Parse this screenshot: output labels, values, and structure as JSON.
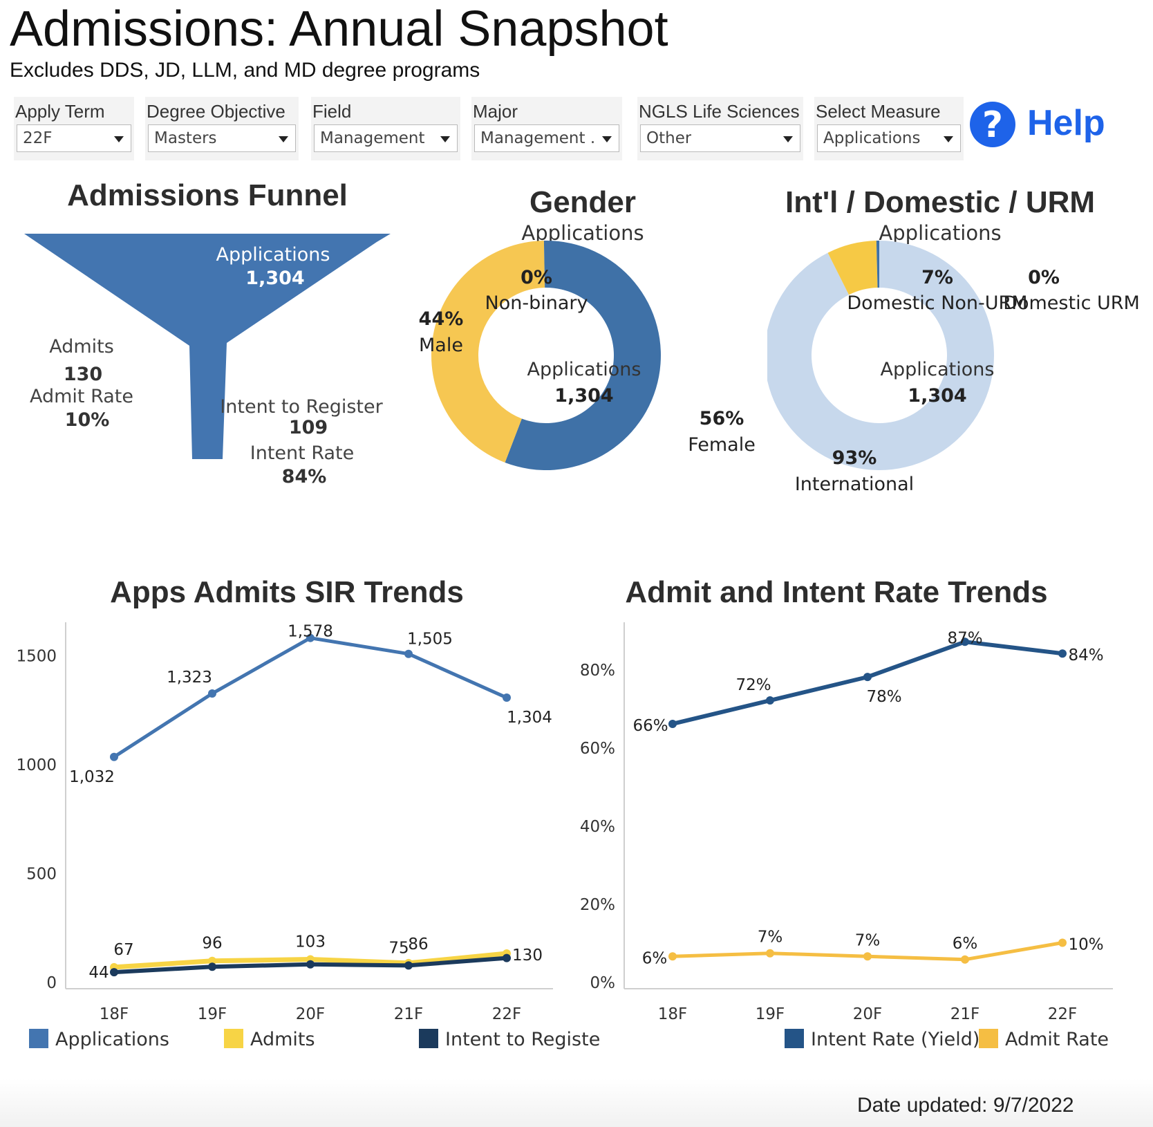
{
  "header": {
    "title": "Admissions: Annual Snapshot",
    "subtitle": "Excludes DDS, JD, LLM, and MD degree programs"
  },
  "filters": [
    {
      "label": "Apply Term",
      "value": "22F"
    },
    {
      "label": "Degree Objective",
      "value": "Masters"
    },
    {
      "label": "Field",
      "value": "Management"
    },
    {
      "label": "Major",
      "value": "Management ..."
    },
    {
      "label": "NGLS Life Sciences",
      "value": "Other"
    },
    {
      "label": "Select Measure",
      "value": "Applications"
    }
  ],
  "help": {
    "label": "Help",
    "icon": "question-circle-icon",
    "color": "#1e63e9"
  },
  "funnel": {
    "title": "Admissions Funnel",
    "applications_label": "Applications",
    "applications_value": "1,304",
    "admits_label": "Admits",
    "admits_value": "130",
    "admit_rate_label": "Admit Rate",
    "admit_rate_value": "10%",
    "intent_label": "Intent to Register",
    "intent_value": "109",
    "intent_rate_label": "Intent Rate",
    "intent_rate_value": "84%"
  },
  "colors": {
    "applications": "#4375b0",
    "admits": "#f7d445",
    "intent": "#1b3a5c",
    "intent_rate": "#245487",
    "admit_rate": "#f5be43",
    "gender_female": "#3f71a7",
    "gender_male": "#f6c752",
    "intl": "#c7d8ec",
    "domestic_non_urm": "#f6c945",
    "domestic_urm": "#3f71a7"
  },
  "chart_data": [
    {
      "type": "pie",
      "title": "Gender",
      "subtitle": "Applications",
      "center_label": "Applications",
      "center_value": "1,304",
      "slices": [
        {
          "label": "Female",
          "value": 56,
          "pct_label": "56%"
        },
        {
          "label": "Male",
          "value": 44,
          "pct_label": "44%"
        },
        {
          "label": "Non-binary",
          "value": 0.3,
          "pct_label": "0%"
        }
      ]
    },
    {
      "type": "pie",
      "title": "Int'l / Domestic / URM",
      "subtitle": "Applications",
      "center_label": "Applications",
      "center_value": "1,304",
      "slices": [
        {
          "label": "International",
          "value": 92.6,
          "pct_label": "93%"
        },
        {
          "label": "Domestic Non-URM",
          "value": 7.0,
          "pct_label": "7%"
        },
        {
          "label": "Domestic URM",
          "value": 0.4,
          "pct_label": "0%"
        }
      ]
    },
    {
      "type": "line",
      "title": "Apps Admits SIR Trends",
      "categories": [
        "18F",
        "19F",
        "20F",
        "21F",
        "22F"
      ],
      "ylim": [
        0,
        1650
      ],
      "yticks": [
        0,
        500,
        1000,
        1500
      ],
      "series": [
        {
          "name": "Applications",
          "values": [
            1032,
            1323,
            1578,
            1505,
            1304
          ],
          "labels": [
            "1,032",
            "1,323",
            "1,578",
            "1,505",
            "1,304"
          ]
        },
        {
          "name": "Admits",
          "values": [
            67,
            96,
            103,
            86,
            130
          ],
          "labels": [
            "67",
            "96",
            "103",
            "86",
            "130"
          ]
        },
        {
          "name": "Intent to Register",
          "values": [
            44,
            69,
            80,
            75,
            109
          ],
          "labels": [
            "44",
            "",
            "",
            "75",
            ""
          ]
        }
      ]
    },
    {
      "type": "line",
      "title": "Admit and Intent Rate Trends",
      "categories": [
        "18F",
        "19F",
        "20F",
        "21F",
        "22F"
      ],
      "ylim": [
        0,
        0.92
      ],
      "yticks": [
        0,
        0.2,
        0.4,
        0.6,
        0.8
      ],
      "ytick_labels": [
        "0%",
        "20%",
        "40%",
        "60%",
        "80%"
      ],
      "series": [
        {
          "name": "Intent Rate (Yield)",
          "values": [
            0.66,
            0.72,
            0.78,
            0.87,
            0.84
          ],
          "labels": [
            "66%",
            "72%",
            "78%",
            "87%",
            "84%"
          ]
        },
        {
          "name": "Admit Rate",
          "values": [
            0.065,
            0.073,
            0.065,
            0.057,
            0.1
          ],
          "labels": [
            "6%",
            "7%",
            "7%",
            "6%",
            "10%"
          ]
        }
      ]
    }
  ],
  "footer": {
    "date_updated": "Date updated: 9/7/2022"
  }
}
